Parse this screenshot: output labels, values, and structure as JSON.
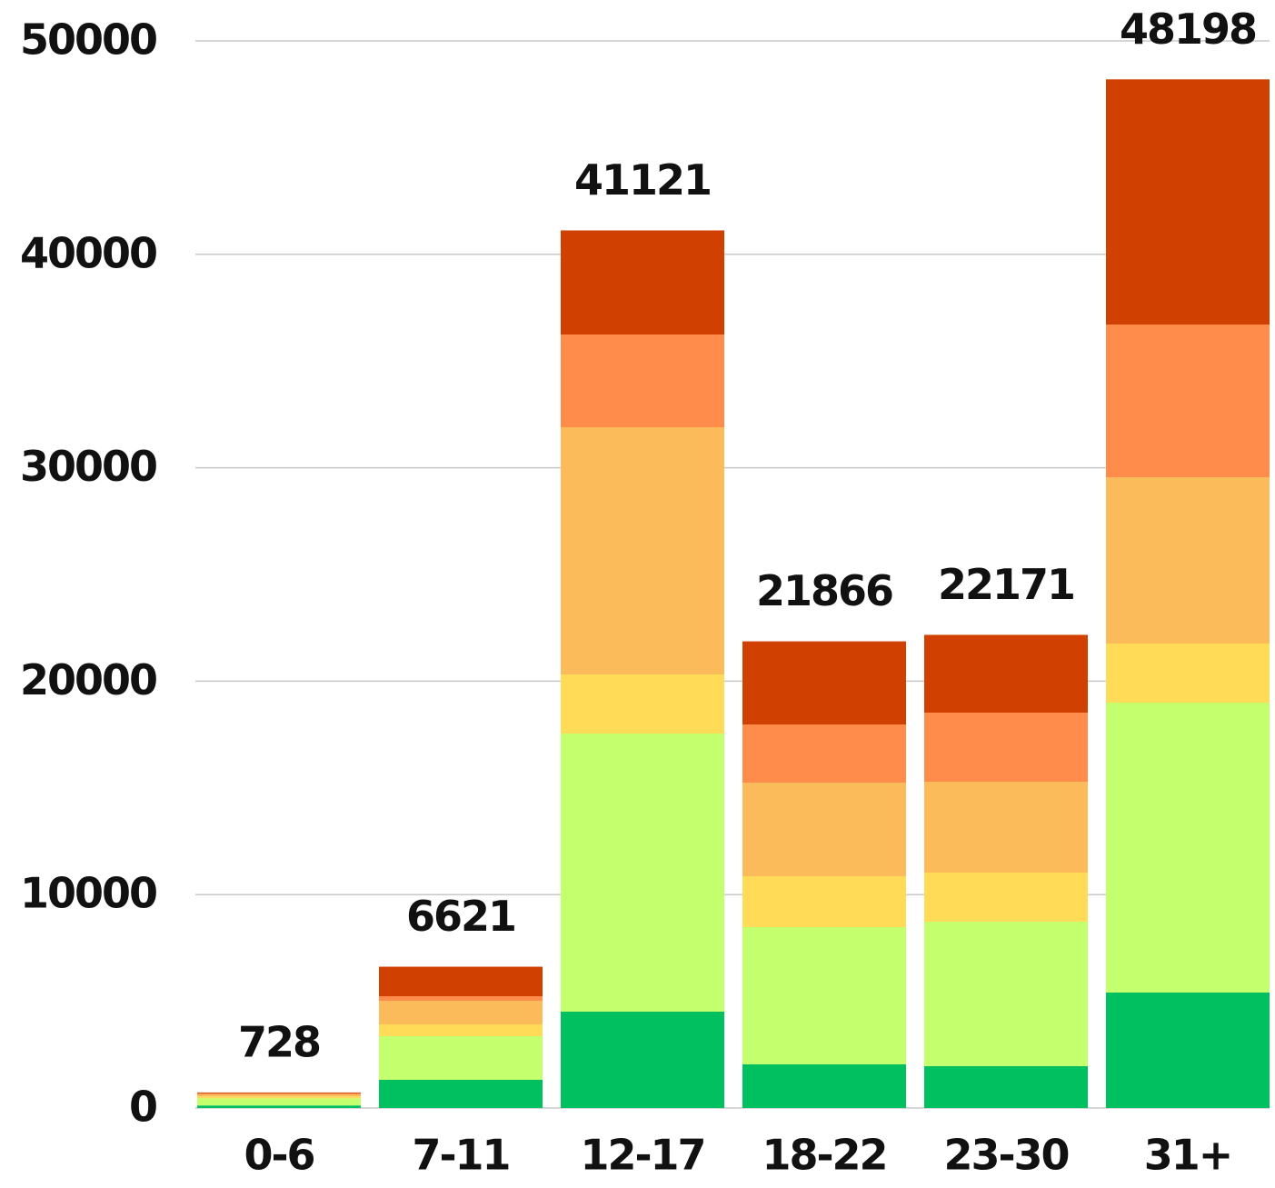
{
  "chart_data": {
    "type": "stacked_bar",
    "categories": [
      "0-6",
      "7-11",
      "12-17",
      "18-22",
      "23-30",
      "31+"
    ],
    "series": [
      {
        "color": "#00c060",
        "values": [
          120,
          1320,
          4515,
          2044,
          1959,
          5409
        ]
      },
      {
        "color": "#c4ff6e",
        "values": [
          330,
          2044,
          13032,
          6431,
          6772,
          13586
        ]
      },
      {
        "color": "#ffdb58",
        "values": [
          90,
          554,
          2768,
          2385,
          2300,
          2768
        ]
      },
      {
        "color": "#fcbb5a",
        "values": [
          100,
          1107,
          11584,
          4387,
          4259,
          7794
        ]
      },
      {
        "color": "#ff8c4a",
        "values": [
          50,
          213,
          4344,
          2726,
          3237,
          7155
        ]
      },
      {
        "color": "#d04000",
        "values": [
          38,
          1383,
          4878,
          3893,
          3644,
          11486
        ]
      }
    ],
    "totals": [
      728,
      6621,
      41121,
      21866,
      22171,
      48198
    ],
    "ylim": [
      0,
      50000
    ],
    "yticks": [
      0,
      10000,
      20000,
      30000,
      40000,
      50000
    ],
    "grid": true
  }
}
